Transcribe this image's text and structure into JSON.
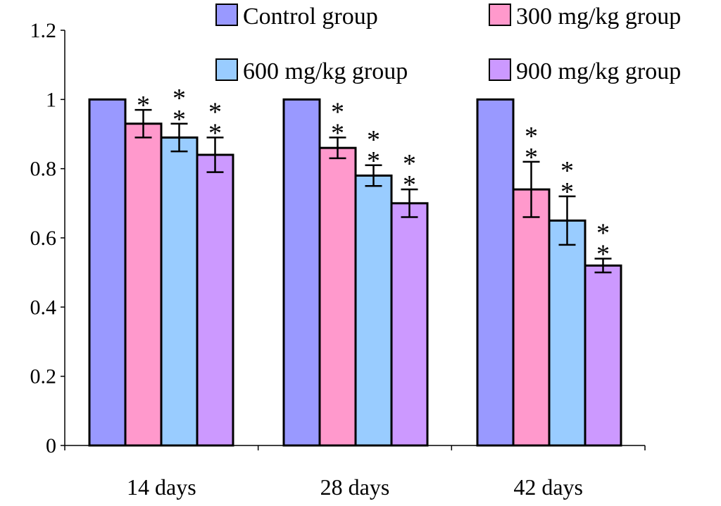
{
  "chart_data": {
    "type": "bar",
    "title": "",
    "xlabel": "",
    "ylabel": "",
    "ylim": [
      0,
      1.2
    ],
    "yticks": [
      0,
      0.2,
      0.4,
      0.6,
      0.8,
      1,
      1.2
    ],
    "ytick_labels": [
      "0",
      "0.2",
      "0.4",
      "0.6",
      "0.8",
      "1",
      "1.2"
    ],
    "categories": [
      "14 days",
      "28 days",
      "42 days"
    ],
    "legend_position": "top",
    "series": [
      {
        "name": "Control group",
        "color": "#9999ff",
        "values": [
          1.0,
          1.0,
          1.0
        ],
        "errors": [
          0,
          0,
          0
        ],
        "significance": [
          "",
          "",
          ""
        ]
      },
      {
        "name": "300 mg/kg group",
        "color": "#ff99cc",
        "values": [
          0.93,
          0.86,
          0.74
        ],
        "errors": [
          0.04,
          0.03,
          0.08
        ],
        "significance": [
          "*",
          "**",
          "**"
        ]
      },
      {
        "name": "600 mg/kg group",
        "color": "#99ccff",
        "values": [
          0.89,
          0.78,
          0.65
        ],
        "errors": [
          0.04,
          0.03,
          0.07
        ],
        "significance": [
          "**",
          "**",
          "**"
        ]
      },
      {
        "name": "900 mg/kg group",
        "color": "#cc99ff",
        "values": [
          0.84,
          0.7,
          0.52
        ],
        "errors": [
          0.05,
          0.04,
          0.02
        ],
        "significance": [
          "**",
          "**",
          "**"
        ]
      }
    ]
  }
}
